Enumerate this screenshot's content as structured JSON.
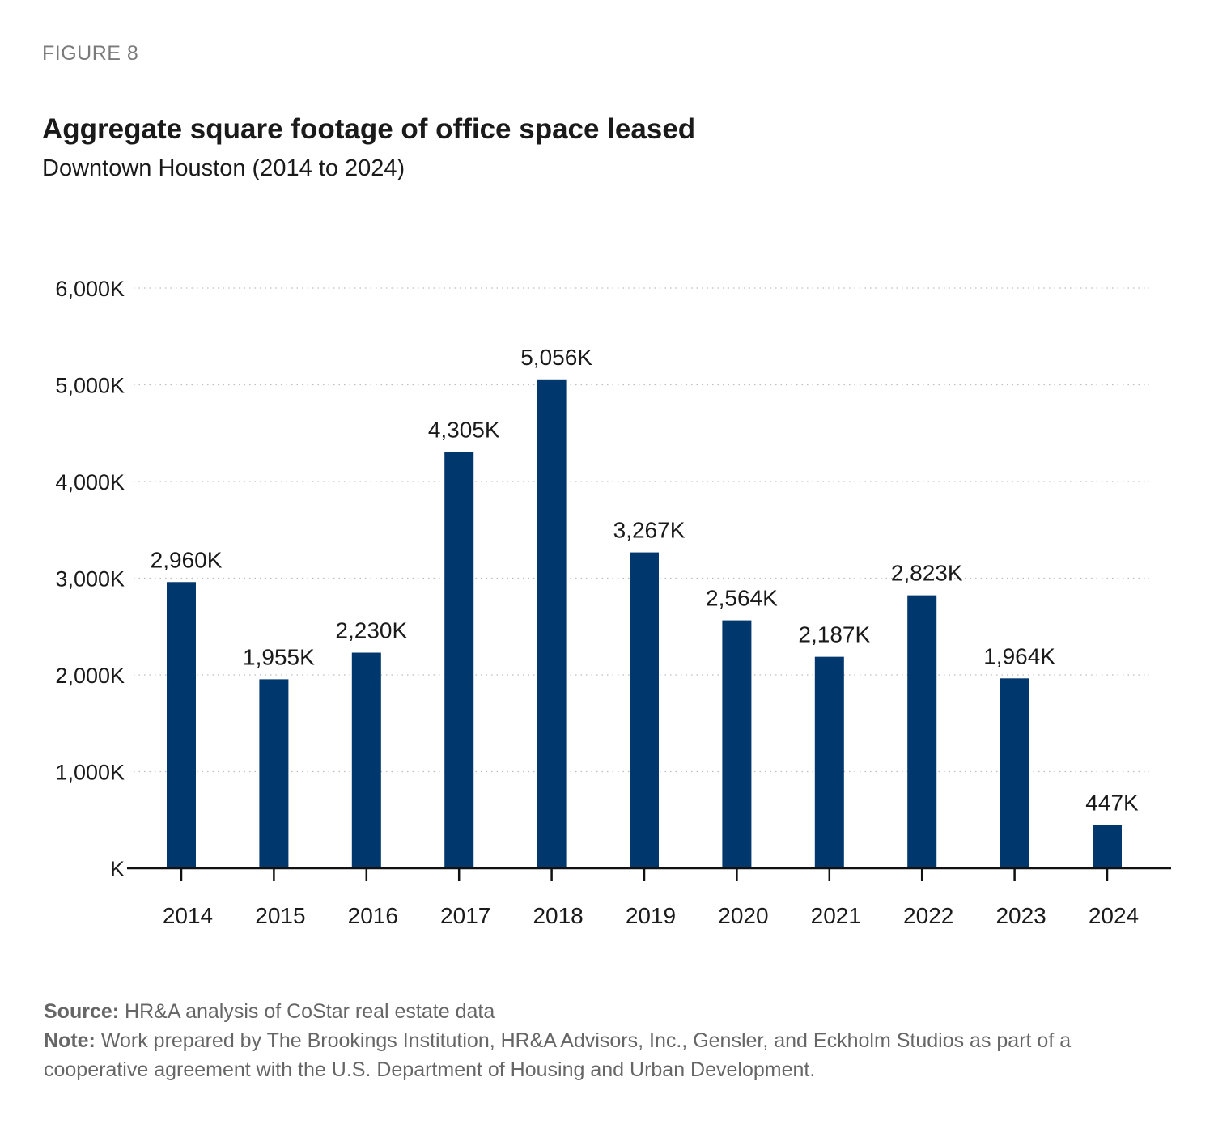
{
  "figure_label": "FIGURE 8",
  "footer": {
    "source_label": "Source:",
    "source_text": "HR&A analysis of CoStar real estate data",
    "note_label": "Note:",
    "note_text": "Work prepared by The Brookings Institution, HR&A Advisors, Inc., Gensler, and Eckholm Studios as part of a cooperative agreement with the U.S. Department of Housing and Urban Development."
  },
  "colors": {
    "bar": "#00376d",
    "grid": "#bdbdbd",
    "axis": "#111111"
  },
  "chart_data": {
    "type": "bar",
    "title": "Aggregate square footage of office space leased",
    "subtitle": "Downtown Houston (2014 to 2024)",
    "xlabel": "",
    "ylabel": "",
    "categories": [
      "2014",
      "2015",
      "2016",
      "2017",
      "2018",
      "2019",
      "2020",
      "2021",
      "2022",
      "2023",
      "2024"
    ],
    "values": [
      2960,
      1955,
      2230,
      4305,
      5056,
      3267,
      2564,
      2187,
      2823,
      1964,
      447
    ],
    "data_labels": [
      "2,960K",
      "1,955K",
      "2,230K",
      "4,305K",
      "5,056K",
      "3,267K",
      "2,564K",
      "2,187K",
      "2,823K",
      "1,964K",
      "447K"
    ],
    "yticks": [
      0,
      1000,
      2000,
      3000,
      4000,
      5000,
      6000
    ],
    "ytick_labels": [
      "K",
      "1,000K",
      "2,000K",
      "3,000K",
      "4,000K",
      "5,000K",
      "6,000K"
    ],
    "ylim": [
      0,
      6000
    ],
    "grid": true,
    "legend": "none"
  }
}
